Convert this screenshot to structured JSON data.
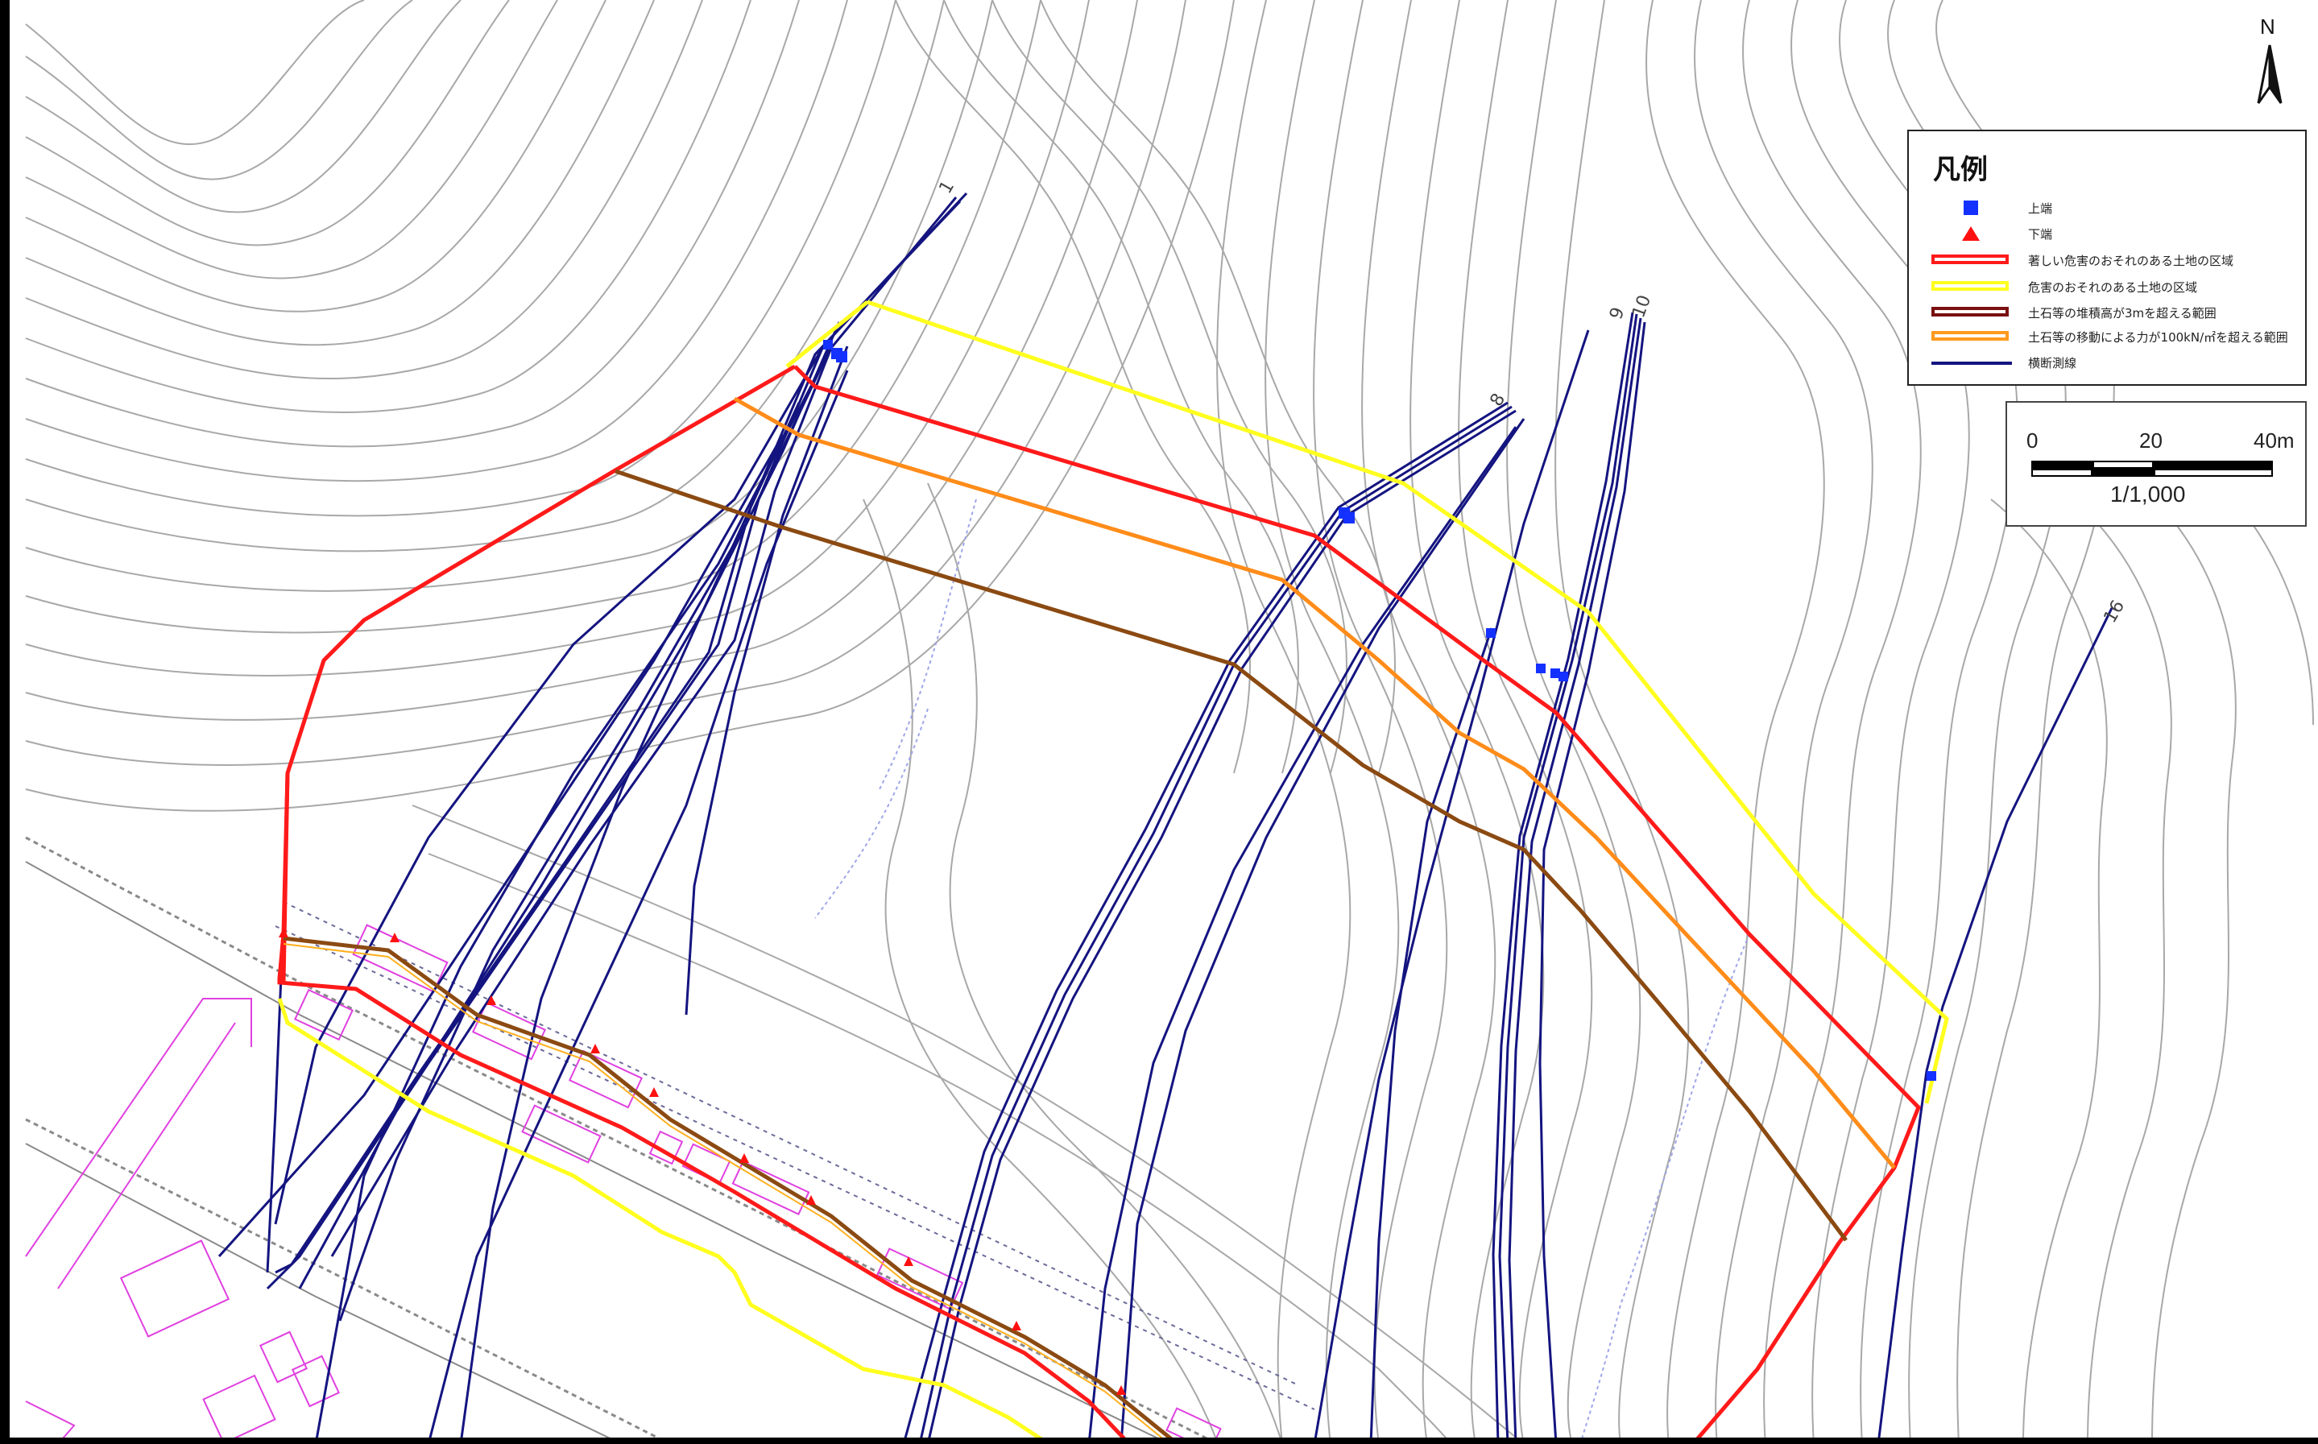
{
  "map": {
    "north_label": "N",
    "section_labels": {
      "s1": "1",
      "s8": "8",
      "s9": "9",
      "s10": "10",
      "s16": "16"
    }
  },
  "legend": {
    "title": "凡例",
    "items": [
      {
        "label": "上端",
        "symbol": "square",
        "color": "#1431ff"
      },
      {
        "label": "下端",
        "symbol": "triangle",
        "color": "#ff1010"
      },
      {
        "label": "著しい危害のおそれのある土地の区域",
        "symbol": "box",
        "color": "#ff1a1a"
      },
      {
        "label": "危害のおそれのある土地の区域",
        "symbol": "box",
        "color": "#ffff1f"
      },
      {
        "label": "土石等の堆積高が3mを超える範囲",
        "symbol": "box",
        "color": "#7a1010"
      },
      {
        "label": "土石等の移動による力が100kN/㎡を超える範囲",
        "symbol": "box",
        "color": "#ff9a1f"
      },
      {
        "label": "横断測線",
        "symbol": "line",
        "color": "#141480"
      }
    ]
  },
  "scale": {
    "ticks": [
      "0",
      "20",
      "40m"
    ],
    "ratio": "1/1,000"
  },
  "colors": {
    "red_zone": "#ff1a1a",
    "yellow_zone": "#ffff1f",
    "brown_line": "#8b4a12",
    "orange_line": "#ff8c1a",
    "transect": "#141480",
    "contour": "#9a9a9a",
    "building": "#e040e0"
  }
}
